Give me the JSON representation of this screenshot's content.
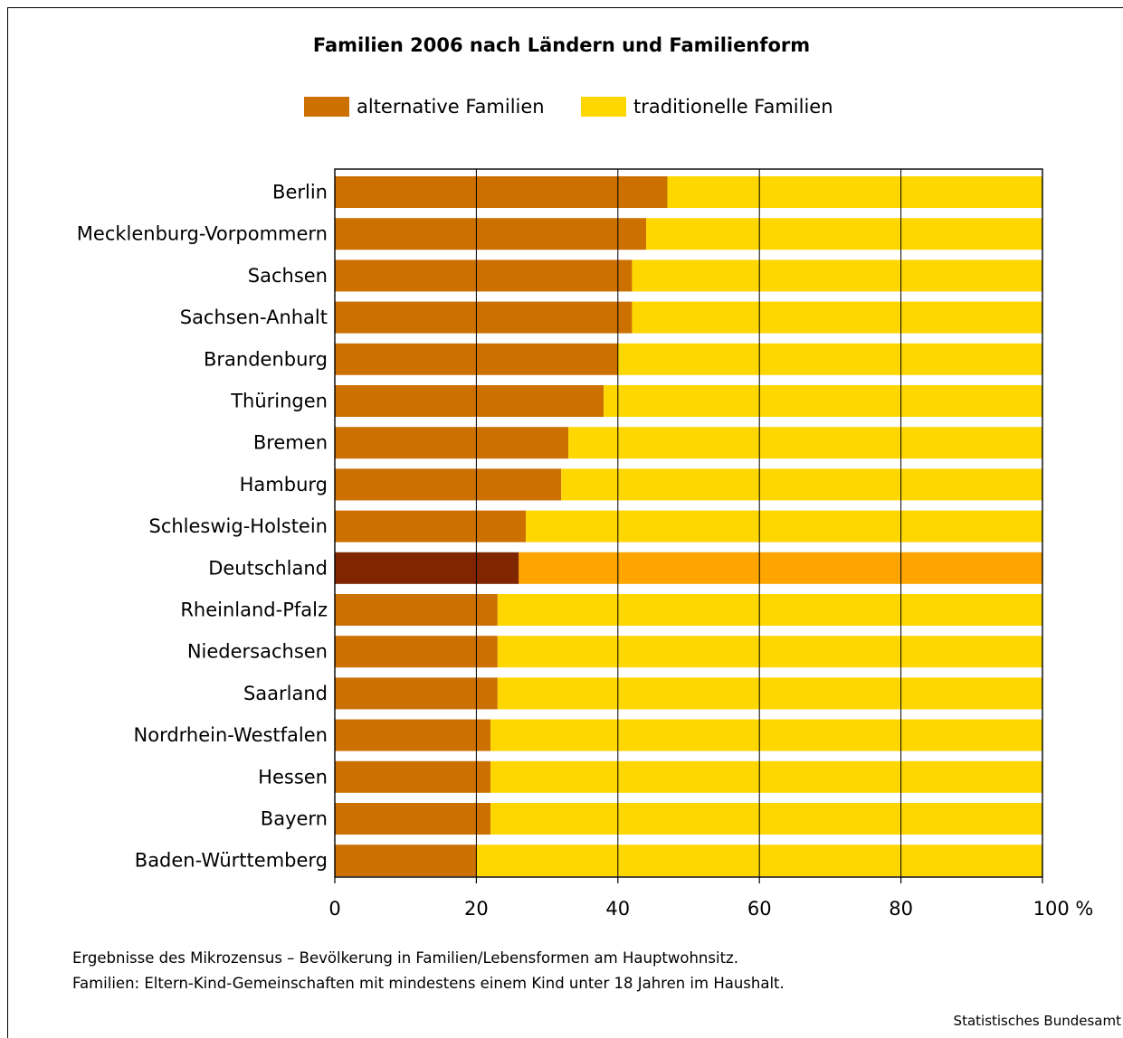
{
  "chart_data": {
    "type": "bar",
    "orientation": "horizontal",
    "stacked": true,
    "title": "Familien 2006 nach Ländern und Familienform",
    "categories": [
      "Berlin",
      "Mecklenburg-Vorpommern",
      "Sachsen",
      "Sachsen-Anhalt",
      "Brandenburg",
      "Thüringen",
      "Bremen",
      "Hamburg",
      "Schleswig-Holstein",
      "Deutschland",
      "Rheinland-Pfalz",
      "Niedersachsen",
      "Saarland",
      "Nordrhein-Westfalen",
      "Hessen",
      "Bayern",
      "Baden-Württemberg"
    ],
    "series": [
      {
        "name": "alternative Familien",
        "values": [
          47,
          44,
          42,
          42,
          40,
          38,
          33,
          32,
          27,
          26,
          23,
          23,
          23,
          22,
          22,
          22,
          20
        ],
        "color": "#cc7000"
      },
      {
        "name": "traditionelle Familien",
        "values": [
          53,
          56,
          58,
          58,
          60,
          62,
          67,
          68,
          73,
          74,
          77,
          77,
          77,
          78,
          78,
          78,
          80
        ],
        "color": "#ffd700"
      }
    ],
    "highlight": {
      "category": "Deutschland",
      "colors": [
        "#7f2600",
        "#ffa500"
      ]
    },
    "x_ticks": [
      "0",
      "20",
      "40",
      "60",
      "80",
      "100 %"
    ],
    "xlim": [
      0,
      100
    ],
    "grid": true,
    "legend_position": "top-center"
  },
  "notes": [
    "Ergebnisse des Mikrozensus – Bevölkerung in Familien/Lebensformen am Hauptwohnsitz.",
    "Familien: Eltern-Kind-Gemeinschaften mit mindestens einem Kind unter 18 Jahren im Haushalt."
  ],
  "source": "Statistisches Bundesamt"
}
